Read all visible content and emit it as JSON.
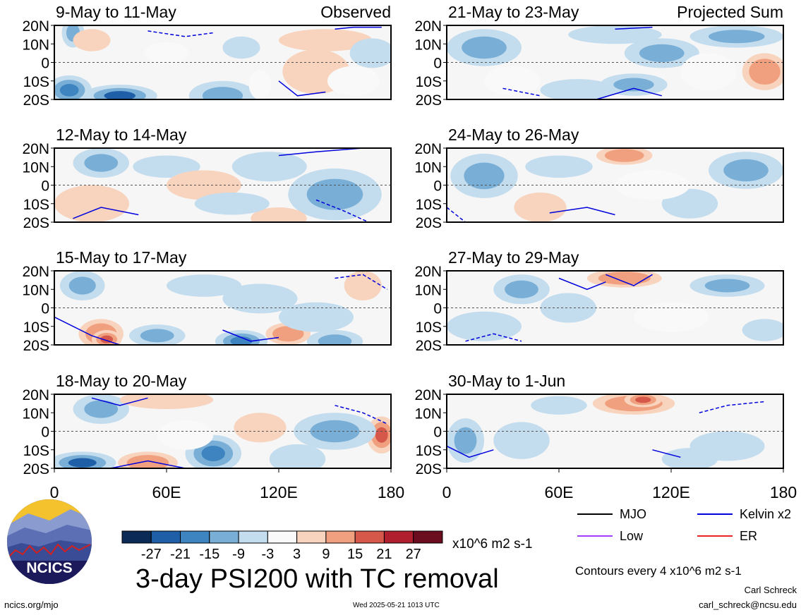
{
  "chart_data": {
    "type": "heatmap",
    "title": "3-day PSI200 with TC removal",
    "units": "x10^6 m2 s-1",
    "contour_note": "Contours every 4 x10^6 m2 s-1",
    "columns": [
      "Observed",
      "Projected Sum"
    ],
    "x_ticks": [
      "0",
      "60E",
      "120E",
      "180"
    ],
    "x_range": [
      0,
      180
    ],
    "y_ticks": [
      "20N",
      "10N",
      "0",
      "10S",
      "20S"
    ],
    "y_range": [
      -20,
      20
    ],
    "colorbar": {
      "labels": [
        "-27",
        "-21",
        "-15",
        "-9",
        "-3",
        "3",
        "9",
        "15",
        "21",
        "27"
      ],
      "colors": [
        "#0b2a56",
        "#1f5fa8",
        "#3d84c0",
        "#79afd6",
        "#c3dcee",
        "#f9f9f9",
        "#f8d3bd",
        "#f0a07e",
        "#d6584b",
        "#b01f2e",
        "#6b0d1f"
      ]
    },
    "legend": [
      {
        "label": "MJO",
        "color": "#000000"
      },
      {
        "label": "Kelvin x2",
        "color": "#0000dd"
      },
      {
        "label": "Low",
        "color": "#a040ff"
      },
      {
        "label": "ER",
        "color": "#e8262a"
      }
    ],
    "panels": [
      {
        "period": "9-May to 11-May",
        "tag": "Observed",
        "blobs": [
          [
            10,
            16,
            6,
            8,
            -9
          ],
          [
            35,
            -18,
            20,
            6,
            -21
          ],
          [
            8,
            -15,
            12,
            8,
            -15
          ],
          [
            20,
            12,
            10,
            6,
            9
          ],
          [
            140,
            -5,
            18,
            12,
            9
          ],
          [
            160,
            -10,
            14,
            8,
            3
          ],
          [
            90,
            -18,
            18,
            8,
            -9
          ],
          [
            60,
            5,
            12,
            6,
            3
          ],
          [
            145,
            12,
            25,
            6,
            9
          ],
          [
            170,
            5,
            12,
            8,
            -3
          ],
          [
            110,
            -12,
            6,
            8,
            3
          ],
          [
            100,
            8,
            10,
            6,
            -3
          ]
        ],
        "contours": [
          [
            [
              150,
              18
            ],
            [
              160,
              19
            ],
            [
              175,
              19
            ]
          ],
          [
            [
              50,
              17
            ],
            [
              70,
              14
            ],
            [
              85,
              16
            ]
          ],
          [
            [
              120,
              -10
            ],
            [
              130,
              -18
            ],
            [
              145,
              -16
            ]
          ]
        ]
      },
      {
        "period": "12-May to 14-May",
        "tag": "",
        "blobs": [
          [
            25,
            12,
            15,
            8,
            -9
          ],
          [
            20,
            -10,
            20,
            10,
            9
          ],
          [
            60,
            10,
            18,
            6,
            -3
          ],
          [
            80,
            0,
            20,
            8,
            9
          ],
          [
            150,
            -5,
            25,
            14,
            -9
          ],
          [
            120,
            -18,
            15,
            6,
            9
          ],
          [
            95,
            -10,
            20,
            6,
            -3
          ],
          [
            115,
            10,
            20,
            8,
            -3
          ]
        ],
        "contours": [
          [
            [
              120,
              16
            ],
            [
              140,
              18
            ],
            [
              165,
              20
            ]
          ],
          [
            [
              140,
              -8
            ],
            [
              155,
              -14
            ],
            [
              168,
              -20
            ]
          ],
          [
            [
              10,
              -18
            ],
            [
              25,
              -12
            ],
            [
              45,
              -16
            ]
          ]
        ]
      },
      {
        "period": "15-May to 17-May",
        "tag": "",
        "blobs": [
          [
            15,
            12,
            12,
            8,
            -9
          ],
          [
            25,
            -14,
            12,
            8,
            15
          ],
          [
            28,
            -17,
            8,
            5,
            21
          ],
          [
            55,
            -15,
            15,
            6,
            -9
          ],
          [
            100,
            -18,
            14,
            6,
            -15
          ],
          [
            110,
            5,
            20,
            8,
            -3
          ],
          [
            165,
            12,
            10,
            8,
            9
          ],
          [
            150,
            -18,
            15,
            6,
            -9
          ],
          [
            125,
            -14,
            12,
            6,
            15
          ],
          [
            80,
            12,
            20,
            6,
            -3
          ],
          [
            140,
            -5,
            20,
            8,
            -3
          ]
        ],
        "contours": [
          [
            [
              0,
              -5
            ],
            [
              20,
              -15
            ],
            [
              35,
              -20
            ]
          ],
          [
            [
              150,
              16
            ],
            [
              165,
              18
            ],
            [
              178,
              10
            ]
          ],
          [
            [
              90,
              -12
            ],
            [
              105,
              -18
            ],
            [
              120,
              -16
            ]
          ]
        ]
      },
      {
        "period": "18-May to 20-May",
        "tag": "",
        "blobs": [
          [
            15,
            -17,
            18,
            6,
            -21
          ],
          [
            50,
            -17,
            16,
            6,
            15
          ],
          [
            85,
            -12,
            15,
            10,
            -15
          ],
          [
            25,
            12,
            15,
            8,
            -9
          ],
          [
            60,
            17,
            25,
            5,
            9
          ],
          [
            110,
            2,
            14,
            8,
            9
          ],
          [
            175,
            -2,
            8,
            10,
            21
          ],
          [
            150,
            0,
            22,
            10,
            -9
          ],
          [
            130,
            -15,
            15,
            8,
            -3
          ],
          [
            70,
            -2,
            15,
            8,
            3
          ]
        ],
        "contours": [
          [
            [
              30,
              -20
            ],
            [
              50,
              -16
            ],
            [
              70,
              -20
            ]
          ],
          [
            [
              150,
              14
            ],
            [
              165,
              10
            ],
            [
              178,
              4
            ]
          ],
          [
            [
              20,
              18
            ],
            [
              35,
              14
            ],
            [
              50,
              18
            ]
          ]
        ]
      },
      {
        "period": "21-May to 23-May",
        "tag": "Projected Sum",
        "blobs": [
          [
            20,
            8,
            20,
            10,
            -9
          ],
          [
            35,
            -10,
            15,
            8,
            3
          ],
          [
            90,
            15,
            25,
            5,
            -3
          ],
          [
            115,
            5,
            20,
            8,
            -9
          ],
          [
            140,
            -5,
            15,
            10,
            3
          ],
          [
            170,
            -5,
            12,
            10,
            15
          ],
          [
            155,
            14,
            25,
            6,
            -9
          ],
          [
            70,
            -15,
            20,
            6,
            -3
          ],
          [
            100,
            -12,
            18,
            6,
            -9
          ]
        ],
        "contours": [
          [
            [
              80,
              -20
            ],
            [
              100,
              -14
            ],
            [
              115,
              -18
            ]
          ],
          [
            [
              30,
              -14
            ],
            [
              50,
              -18
            ]
          ],
          [
            [
              90,
              18
            ],
            [
              110,
              19
            ]
          ]
        ]
      },
      {
        "period": "24-May to 26-May",
        "tag": "",
        "blobs": [
          [
            20,
            5,
            18,
            12,
            -9
          ],
          [
            50,
            -12,
            14,
            8,
            9
          ],
          [
            95,
            16,
            15,
            5,
            15
          ],
          [
            160,
            8,
            20,
            10,
            -9
          ],
          [
            130,
            -10,
            15,
            8,
            -3
          ],
          [
            60,
            10,
            18,
            6,
            -3
          ],
          [
            110,
            0,
            20,
            8,
            3
          ]
        ],
        "contours": [
          [
            [
              55,
              -15
            ],
            [
              75,
              -12
            ],
            [
              90,
              -16
            ]
          ],
          [
            [
              0,
              -12
            ],
            [
              10,
              -20
            ]
          ]
        ]
      },
      {
        "period": "27-May to 29-May",
        "tag": "",
        "blobs": [
          [
            40,
            10,
            15,
            8,
            -9
          ],
          [
            95,
            16,
            20,
            5,
            15
          ],
          [
            150,
            12,
            20,
            6,
            -9
          ],
          [
            170,
            -12,
            12,
            6,
            -3
          ],
          [
            20,
            -10,
            20,
            8,
            -3
          ],
          [
            120,
            -5,
            20,
            8,
            3
          ],
          [
            65,
            0,
            15,
            8,
            -3
          ]
        ],
        "contours": [
          [
            [
              60,
              16
            ],
            [
              75,
              10
            ],
            [
              85,
              14
            ]
          ],
          [
            [
              10,
              -18
            ],
            [
              25,
              -14
            ],
            [
              40,
              -18
            ]
          ],
          [
            [
              85,
              18
            ],
            [
              100,
              12
            ],
            [
              110,
              18
            ]
          ]
        ]
      },
      {
        "period": "30-May to 1-Jun",
        "tag": "",
        "blobs": [
          [
            100,
            15,
            22,
            6,
            15
          ],
          [
            105,
            17,
            10,
            4,
            21
          ],
          [
            10,
            -5,
            10,
            12,
            -9
          ],
          [
            40,
            -5,
            15,
            10,
            -3
          ],
          [
            150,
            -8,
            20,
            8,
            -3
          ],
          [
            130,
            -15,
            15,
            6,
            -3
          ],
          [
            60,
            14,
            15,
            5,
            -3
          ]
        ],
        "contours": [
          [
            [
              0,
              -8
            ],
            [
              12,
              -14
            ],
            [
              25,
              -10
            ]
          ],
          [
            [
              135,
              10
            ],
            [
              150,
              14
            ],
            [
              170,
              16
            ]
          ],
          [
            [
              110,
              -10
            ],
            [
              125,
              -14
            ]
          ]
        ]
      }
    ]
  },
  "footer": {
    "site": "ncics.org/mjo",
    "timestamp": "Wed 2025-05-21 1013 UTC",
    "author": "Carl Schreck",
    "email": "carl_schreck@ncsu.edu",
    "logo_text": "NCICS"
  }
}
